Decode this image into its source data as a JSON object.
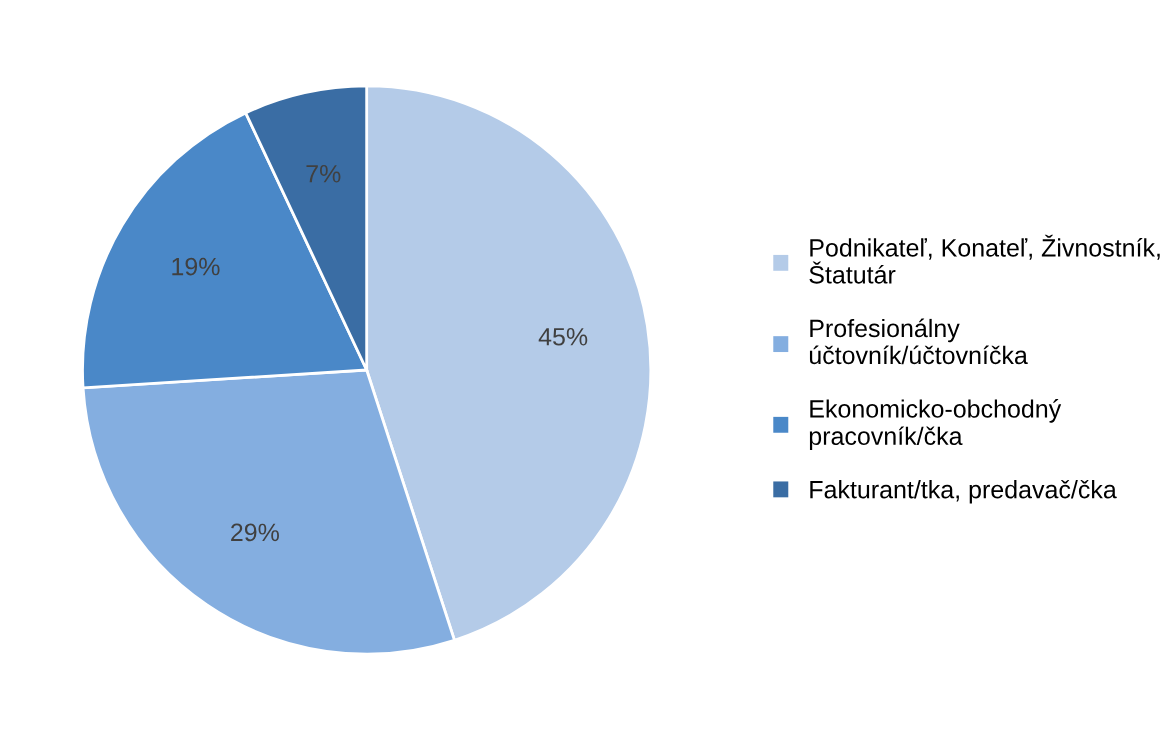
{
  "chart_data": {
    "type": "pie",
    "categories": [
      "Podnikateľ, Konateľ, Živnostník, Štatutár",
      "Profesionálny účtovník/účtovníčka",
      "Ekonomicko-obchodný pracovník/čka",
      "Fakturant/tka, predavač/čka"
    ],
    "values": [
      45,
      29,
      19,
      7
    ],
    "colors": [
      "#b4cbe8",
      "#84aee0",
      "#4a88c8",
      "#3a6da4"
    ],
    "value_labels": [
      "45%",
      "29%",
      "19%",
      "7%"
    ],
    "legend": "right"
  }
}
